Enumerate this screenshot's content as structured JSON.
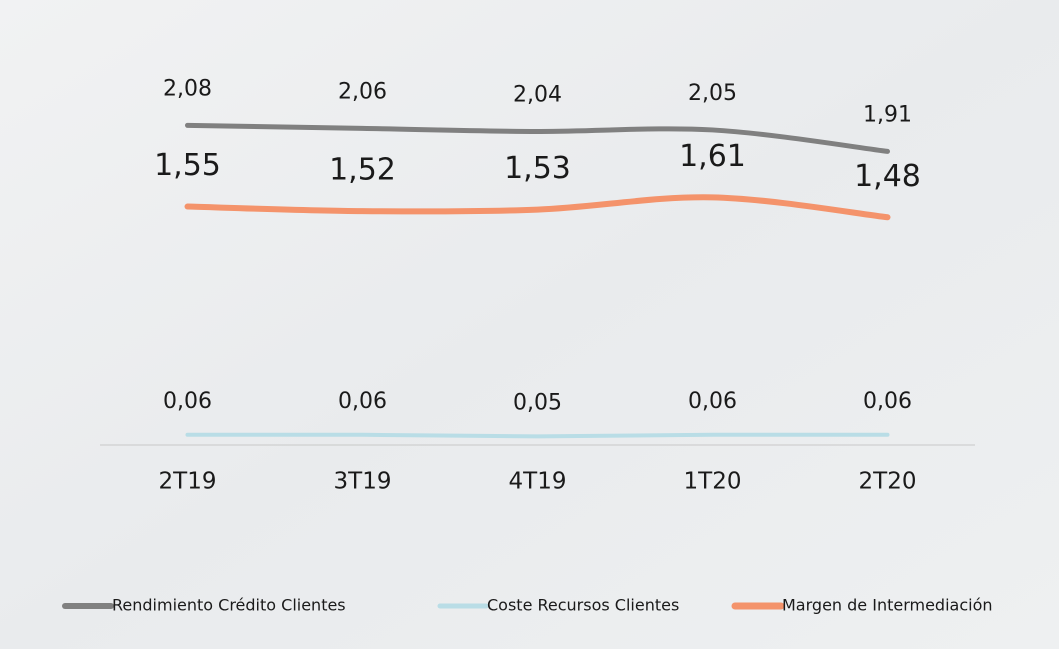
{
  "chart_data": {
    "type": "line",
    "categories": [
      "2T19",
      "3T19",
      "4T19",
      "1T20",
      "2T20"
    ],
    "series": [
      {
        "name": "Rendimiento Crédito Clientes",
        "color": "#808080",
        "values": [
          2.08,
          2.06,
          2.04,
          2.05,
          1.91
        ],
        "value_labels": [
          "2,08",
          "2,06",
          "2,04",
          "2,05",
          "1,91"
        ]
      },
      {
        "name": "Coste Recursos Clientes",
        "color": "#b9dde6",
        "values": [
          0.06,
          0.06,
          0.05,
          0.06,
          0.06
        ],
        "value_labels": [
          "0,06",
          "0,06",
          "0,05",
          "0,06",
          "0,06"
        ]
      },
      {
        "name": "Margen de Intermediación",
        "color": "#f4936b",
        "values": [
          1.55,
          1.52,
          1.53,
          1.61,
          1.48
        ],
        "value_labels": [
          "1,55",
          "1,52",
          "1,53",
          "1,61",
          "1,48"
        ]
      }
    ],
    "ylim": [
      0,
      2.5
    ],
    "legend": "bottom"
  }
}
